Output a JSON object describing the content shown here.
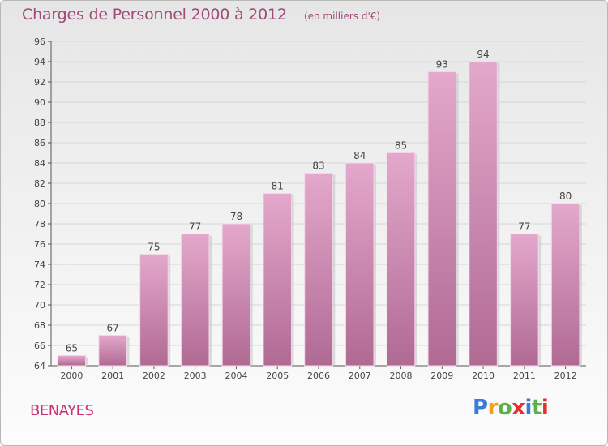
{
  "chart_data": {
    "type": "bar",
    "title": "Charges de Personnel 2000 à 2012",
    "subtitle": "(en milliers d'€)",
    "categories": [
      "2000",
      "2001",
      "2002",
      "2003",
      "2004",
      "2005",
      "2006",
      "2007",
      "2008",
      "2009",
      "2010",
      "2011",
      "2012"
    ],
    "values": [
      65,
      67,
      75,
      77,
      78,
      81,
      83,
      84,
      85,
      93,
      94,
      77,
      80
    ],
    "ylim": [
      64,
      96
    ],
    "yticks": [
      64,
      66,
      68,
      70,
      72,
      74,
      76,
      78,
      80,
      82,
      84,
      86,
      88,
      90,
      92,
      94,
      96
    ],
    "grid": true,
    "xlabel": "",
    "ylabel": "",
    "bar_color_top": "#e4a8cc",
    "bar_color_bottom": "#b06a94"
  },
  "footer": {
    "commune": "BENAYES",
    "logo": "Proxiti"
  }
}
